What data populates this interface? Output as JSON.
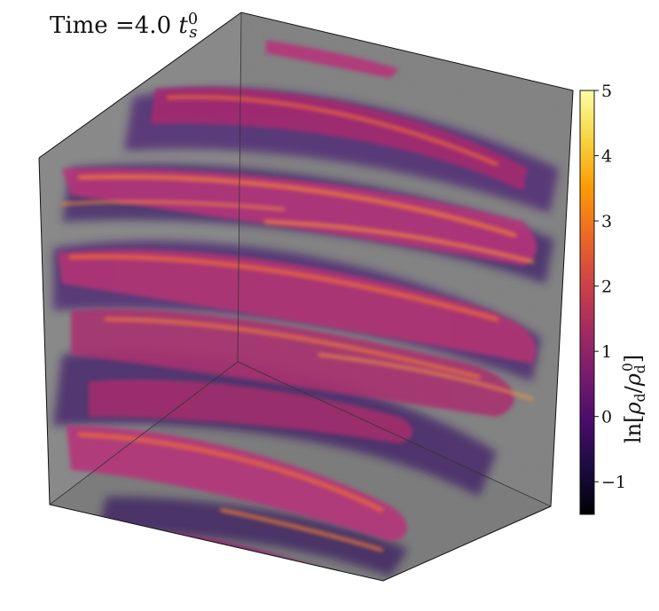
{
  "title": {
    "prefix": "Time",
    "equals": "=",
    "value": "4.0",
    "symbol": "t",
    "subscript": "s",
    "superscript": "0"
  },
  "colorbar": {
    "label_prefix": "ln",
    "label_symbol": "ρ",
    "label_subscript": "d",
    "label_superscript": "0",
    "ticks": [
      "5",
      "4",
      "3",
      "2",
      "1",
      "0",
      "−1"
    ],
    "tick_values": [
      5,
      4,
      3,
      2,
      1,
      0,
      -1
    ],
    "range": [
      -1.5,
      5
    ],
    "colormap": [
      "#000004",
      "#1b0c41",
      "#4a0c6b",
      "#781c6d",
      "#a52c60",
      "#cf4446",
      "#ed6925",
      "#fb9b06",
      "#f7d13d",
      "#fcffa4"
    ]
  },
  "colors": {
    "box_face": "#7d7d7d",
    "dense_magenta": "#b5367a",
    "dense_orange": "#ee6a3b",
    "low_density_purple": "#3e1f66"
  }
}
